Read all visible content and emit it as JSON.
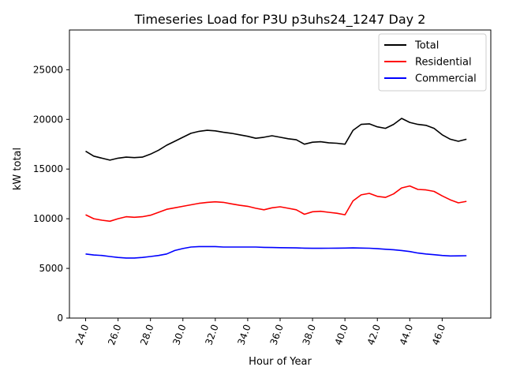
{
  "chart_data": {
    "type": "line",
    "title": "Timeseries Load for P3U p3uhs24_1247  Day 2",
    "xlabel": "Hour of Year",
    "ylabel": "kW total",
    "xlim": [
      23.0,
      49.0
    ],
    "ylim": [
      0,
      29000
    ],
    "x_ticks": [
      24,
      26,
      28,
      30,
      32,
      34,
      36,
      38,
      40,
      42,
      44,
      46
    ],
    "x_tick_labels": [
      "24.0",
      "26.0",
      "28.0",
      "30.0",
      "32.0",
      "34.0",
      "36.0",
      "38.0",
      "40.0",
      "42.0",
      "44.0",
      "46.0"
    ],
    "y_ticks": [
      0,
      5000,
      10000,
      15000,
      20000,
      25000
    ],
    "y_tick_labels": [
      "0",
      "5000",
      "10000",
      "15000",
      "20000",
      "25000"
    ],
    "legend_position": "top-right",
    "x": [
      24.0,
      24.5,
      25.0,
      25.5,
      26.0,
      26.5,
      27.0,
      27.5,
      28.0,
      28.5,
      29.0,
      29.5,
      30.0,
      30.5,
      31.0,
      31.5,
      32.0,
      32.5,
      33.0,
      33.5,
      34.0,
      34.5,
      35.0,
      35.5,
      36.0,
      36.5,
      37.0,
      37.5,
      38.0,
      38.5,
      39.0,
      39.5,
      40.0,
      40.5,
      41.0,
      41.5,
      42.0,
      42.5,
      43.0,
      43.5,
      44.0,
      44.5,
      45.0,
      45.5,
      46.0,
      46.5,
      47.0,
      47.5
    ],
    "series": [
      {
        "name": "Total",
        "color": "#000000",
        "values": [
          16800,
          16300,
          16100,
          15900,
          16100,
          16200,
          16150,
          16200,
          16500,
          16900,
          17400,
          17800,
          18200,
          18600,
          18800,
          18900,
          18850,
          18700,
          18600,
          18450,
          18300,
          18100,
          18200,
          18350,
          18200,
          18050,
          17950,
          17500,
          17700,
          17750,
          17650,
          17600,
          17500,
          18900,
          19500,
          19550,
          19250,
          19100,
          19500,
          20100,
          19700,
          19500,
          19400,
          19100,
          18450,
          18000,
          17800,
          18000
        ]
      },
      {
        "name": "Residential",
        "color": "#ff0000",
        "values": [
          10400,
          10000,
          9850,
          9750,
          10000,
          10200,
          10150,
          10200,
          10350,
          10650,
          10950,
          11100,
          11250,
          11400,
          11550,
          11650,
          11700,
          11650,
          11500,
          11350,
          11250,
          11050,
          10900,
          11100,
          11200,
          11050,
          10900,
          10450,
          10700,
          10750,
          10650,
          10550,
          10400,
          11800,
          12400,
          12550,
          12250,
          12150,
          12500,
          13100,
          13300,
          12950,
          12900,
          12750,
          12300,
          11900,
          11600,
          11750
        ]
      },
      {
        "name": "Commercial",
        "color": "#0000ff",
        "values": [
          6450,
          6350,
          6300,
          6200,
          6100,
          6050,
          6050,
          6100,
          6200,
          6300,
          6450,
          6800,
          7000,
          7150,
          7200,
          7200,
          7200,
          7150,
          7150,
          7150,
          7150,
          7150,
          7120,
          7100,
          7090,
          7080,
          7060,
          7040,
          7020,
          7020,
          7030,
          7040,
          7050,
          7060,
          7050,
          7030,
          6980,
          6930,
          6880,
          6800,
          6700,
          6550,
          6450,
          6380,
          6300,
          6250,
          6260,
          6280
        ]
      }
    ]
  }
}
